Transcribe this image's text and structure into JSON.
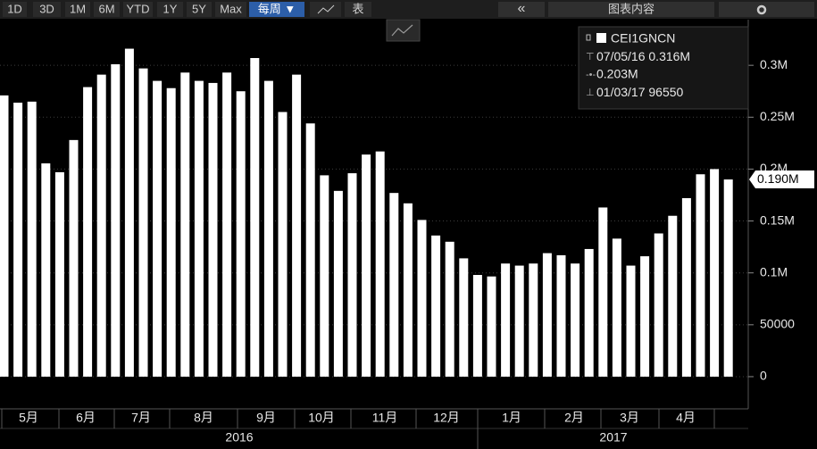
{
  "toolbar": {
    "ranges": [
      "1D",
      "3D",
      "1M",
      "6M",
      "YTD",
      "1Y",
      "5Y",
      "Max"
    ],
    "frequency": "每周 ▼",
    "table": "表",
    "collapse": "«",
    "content": "图表内容"
  },
  "chart_data": {
    "type": "bar",
    "color": "#ffffff",
    "values": [
      271000,
      264000,
      265000,
      205500,
      197000,
      228000,
      279000,
      291000,
      301000,
      316000,
      297000,
      285000,
      278000,
      293000,
      285000,
      283000,
      293000,
      275000,
      307000,
      285000,
      255000,
      291000,
      244000,
      194000,
      179000,
      196000,
      214000,
      217000,
      177000,
      167000,
      151000,
      136000,
      130000,
      114000,
      98000,
      96550,
      109000,
      107000,
      109000,
      119000,
      117000,
      109000,
      123000,
      163000,
      133000,
      107000,
      116000,
      138000,
      155000,
      172000,
      195000,
      200000,
      190000
    ],
    "ylim": [
      -31000,
      344000
    ],
    "yticks": [
      0,
      50000,
      {
        "value": 100000,
        "label": "0.1M"
      },
      {
        "value": 150000,
        "label": "0.15M"
      },
      {
        "value": 200000,
        "label": "0.2M"
      },
      {
        "value": 250000,
        "label": "0.25M"
      },
      {
        "value": 300000,
        "label": "0.3M"
      }
    ],
    "grid": true,
    "last_value_label": "0.190M",
    "months": [
      "5月",
      "6月",
      "7月",
      "8月",
      "9月",
      "10月",
      "11月",
      "12月",
      "1月",
      "2月",
      "3月",
      "4月"
    ],
    "years": [
      "2016",
      "2017"
    ],
    "legend": {
      "name": "CEI1GNCN",
      "high_date": "07/05/16",
      "high": "0.316M",
      "average": "0.203M",
      "low_date": "01/03/17",
      "low": "96550"
    }
  }
}
